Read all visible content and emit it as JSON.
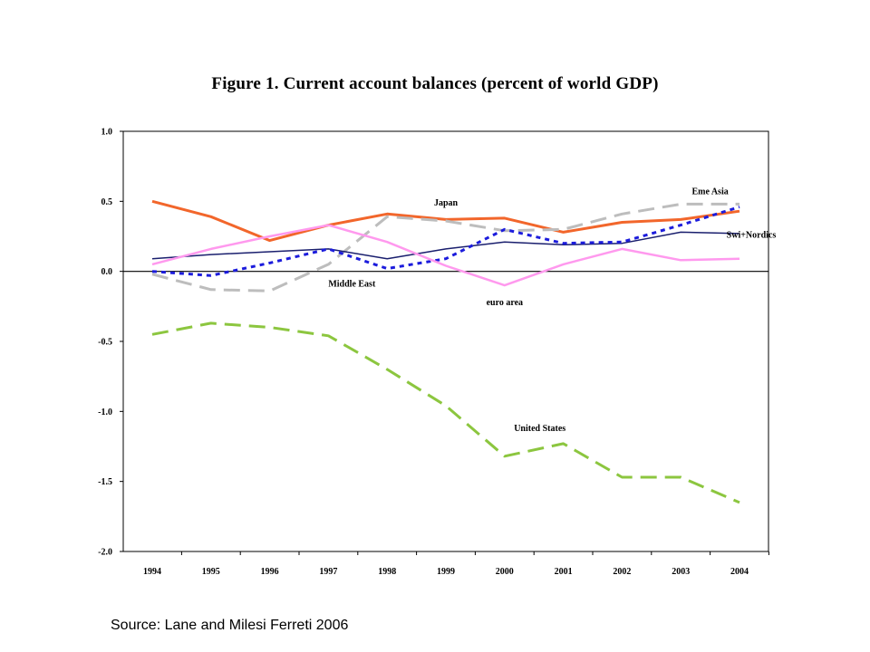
{
  "page": {
    "source": "Source: Lane and Milesi Ferreti 2006"
  },
  "chart_data": {
    "type": "line",
    "title": "Figure 1. Current account balances (percent of world GDP)",
    "xlabel": "",
    "ylabel": "",
    "ylim": [
      -2.0,
      1.0
    ],
    "grid": false,
    "y_ticks": [
      {
        "value": 1.0,
        "label": "1.0"
      },
      {
        "value": 0.5,
        "label": "0.5"
      },
      {
        "value": 0.0,
        "label": "0.0"
      },
      {
        "value": -0.5,
        "label": "-0.5"
      },
      {
        "value": -1.0,
        "label": "-1.0"
      },
      {
        "value": -1.5,
        "label": "-1.5"
      },
      {
        "value": -2.0,
        "label": "-2.0"
      }
    ],
    "x": [
      "1994",
      "1995",
      "1996",
      "1997",
      "1998",
      "1999",
      "2000",
      "2001",
      "2002",
      "2003",
      "2004"
    ],
    "series": [
      {
        "name": "Japan",
        "color": "#f2662b",
        "dash": "solid",
        "width": 3,
        "values": [
          0.5,
          0.39,
          0.22,
          0.33,
          0.41,
          0.37,
          0.38,
          0.28,
          0.35,
          0.37,
          0.43
        ]
      },
      {
        "name": "Eme Asia",
        "color": "#bdbdbd",
        "dash": "long",
        "width": 3,
        "values": [
          -0.02,
          -0.13,
          -0.14,
          0.05,
          0.39,
          0.36,
          0.29,
          0.3,
          0.41,
          0.48,
          0.48
        ]
      },
      {
        "name": "Swi+Nordics",
        "color": "#1a1f6e",
        "dash": "solid",
        "width": 1.5,
        "values": [
          0.09,
          0.12,
          0.14,
          0.16,
          0.09,
          0.16,
          0.21,
          0.19,
          0.2,
          0.28,
          0.27
        ]
      },
      {
        "name": "Middle East",
        "color": "#1c1cdc",
        "dash": "dotted",
        "width": 3,
        "values": [
          0.0,
          -0.03,
          0.06,
          0.16,
          0.02,
          0.09,
          0.3,
          0.2,
          0.21,
          0.33,
          0.46
        ]
      },
      {
        "name": "euro area",
        "color": "#ff99ee",
        "dash": "solid",
        "width": 2.5,
        "values": [
          0.05,
          0.16,
          0.25,
          0.33,
          0.21,
          0.04,
          -0.1,
          0.05,
          0.16,
          0.08,
          0.09
        ]
      },
      {
        "name": "United States",
        "color": "#8cc63f",
        "dash": "long",
        "width": 3,
        "values": [
          -0.45,
          -0.37,
          -0.4,
          -0.46,
          -0.7,
          -0.96,
          -1.32,
          -1.23,
          -1.47,
          -1.47,
          -1.65
        ]
      }
    ],
    "annotations": [
      {
        "text": "Japan",
        "x": 1999.0,
        "y": 0.47
      },
      {
        "text": "Eme Asia",
        "x": 2003.5,
        "y": 0.55
      },
      {
        "text": "Swi+Nordics",
        "x": 2004.2,
        "y": 0.24
      },
      {
        "text": "Middle East",
        "x": 1997.4,
        "y": -0.11
      },
      {
        "text": "euro area",
        "x": 2000.0,
        "y": -0.24
      },
      {
        "text": "United States",
        "x": 2000.6,
        "y": -1.14
      }
    ]
  }
}
